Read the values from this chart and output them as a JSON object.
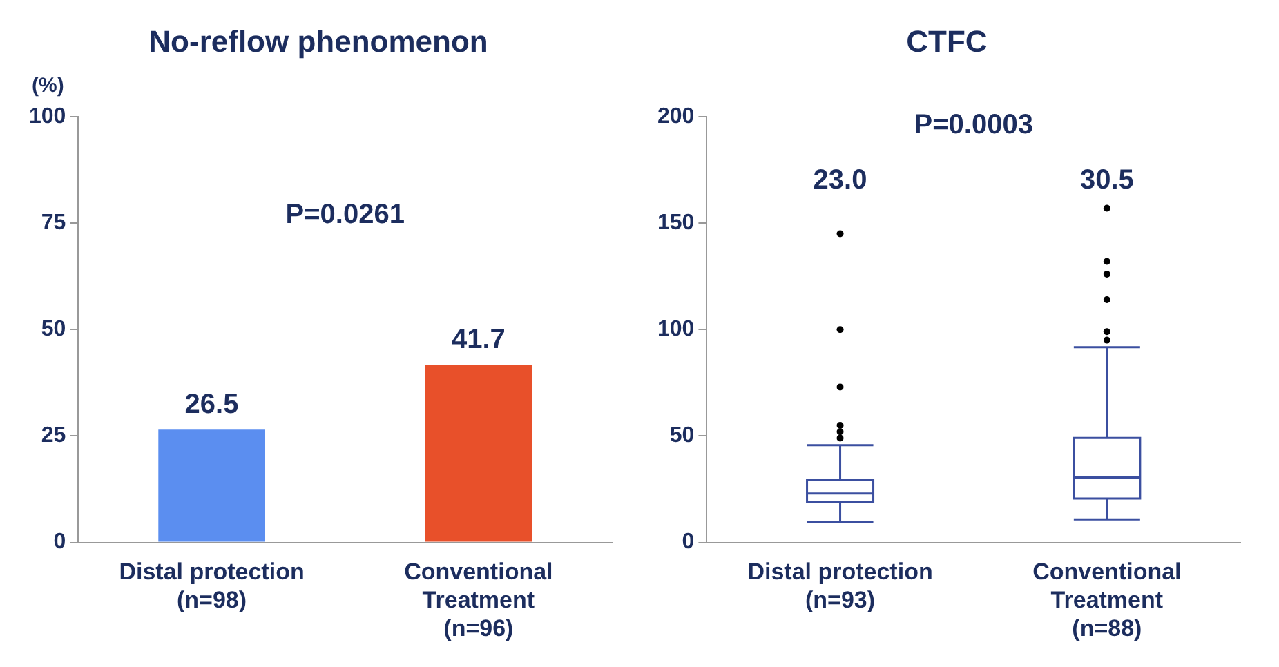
{
  "chart_data": [
    {
      "type": "bar",
      "title": "No-reflow phenomenon",
      "ylabel": "(%)",
      "categories": [
        "Distal protection\n(n=98)",
        "Conventional\nTreatment\n(n=96)"
      ],
      "values": [
        26.5,
        41.7
      ],
      "colors": [
        "#5b8ef0",
        "#e8502a"
      ],
      "ylim": [
        0,
        100
      ],
      "yticks": [
        0,
        25,
        50,
        75,
        100
      ],
      "data_labels": true,
      "grid": false,
      "legend": false,
      "annotations": [
        "P=0.0261"
      ]
    },
    {
      "type": "box",
      "title": "CTFC",
      "categories": [
        "Distal protection\n(n=93)",
        "Conventional\nTreatment\n(n=88)"
      ],
      "color": "#3b4fa0",
      "boxes": [
        {
          "low": 9.5,
          "q1": 18.8,
          "median": 23,
          "q3": 29.2,
          "high": 45.7,
          "outliers": [
            145,
            100,
            73,
            55,
            52,
            49
          ]
        },
        {
          "low": 10.8,
          "q1": 20.6,
          "median": 30.5,
          "q3": 49.1,
          "high": 91.7,
          "outliers": [
            157,
            132,
            126,
            114,
            99,
            95
          ]
        }
      ],
      "ylim": [
        0,
        200
      ],
      "yticks": [
        0,
        50,
        100,
        150,
        200
      ],
      "grid": false,
      "legend": false,
      "annotations": [
        "P=0.0003",
        "23.0",
        "30.5"
      ]
    }
  ]
}
